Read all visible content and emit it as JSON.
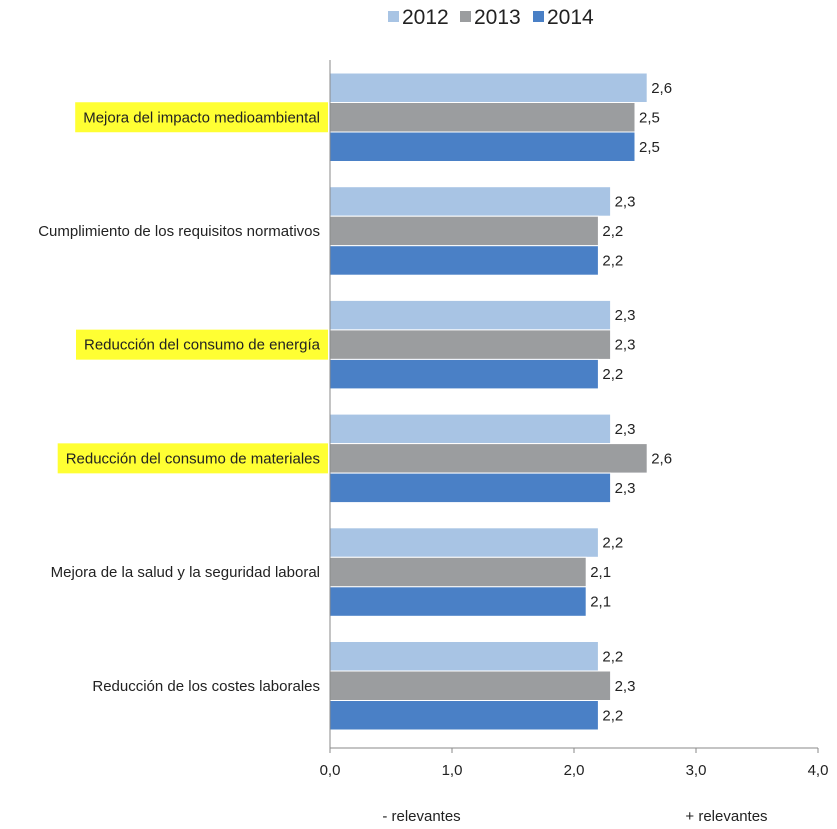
{
  "chart_data": {
    "type": "bar",
    "orientation": "horizontal",
    "title": "",
    "xlabel": "",
    "ylabel": "",
    "xlim": [
      0,
      4
    ],
    "x_ticks": [
      0,
      1,
      2,
      3,
      4
    ],
    "x_tick_labels": [
      "0,0",
      "1,0",
      "2,0",
      "3,0",
      "4,0"
    ],
    "grid": false,
    "legend_position": "top",
    "categories": [
      "Mejora del impacto medioambiental",
      "Cumplimiento de los requisitos normativos",
      "Reducción del consumo de energía",
      "Reducción del consumo de materiales",
      "Mejora de la salud y la seguridad laboral",
      "Reducción de los costes laborales"
    ],
    "highlighted_categories": [
      0,
      2,
      3
    ],
    "highlight_color": "#ffff33",
    "series": [
      {
        "name": "2012",
        "color": "#a8c4e4",
        "values": [
          2.6,
          2.3,
          2.3,
          2.3,
          2.2,
          2.2
        ],
        "labels": [
          "2,6",
          "2,3",
          "2,3",
          "2,3",
          "2,2",
          "2,2"
        ]
      },
      {
        "name": "2013",
        "color": "#9b9d9f",
        "values": [
          2.5,
          2.2,
          2.3,
          2.6,
          2.1,
          2.3
        ],
        "labels": [
          "2,5",
          "2,2",
          "2,3",
          "2,6",
          "2,1",
          "2,3"
        ]
      },
      {
        "name": "2014",
        "color": "#4a80c6",
        "values": [
          2.5,
          2.2,
          2.2,
          2.3,
          2.1,
          2.2
        ],
        "labels": [
          "2,5",
          "2,2",
          "2,2",
          "2,3",
          "2,1",
          "2,2"
        ]
      }
    ],
    "axis_notes": {
      "left": "- relevantes",
      "right": "+ relevantes"
    }
  }
}
